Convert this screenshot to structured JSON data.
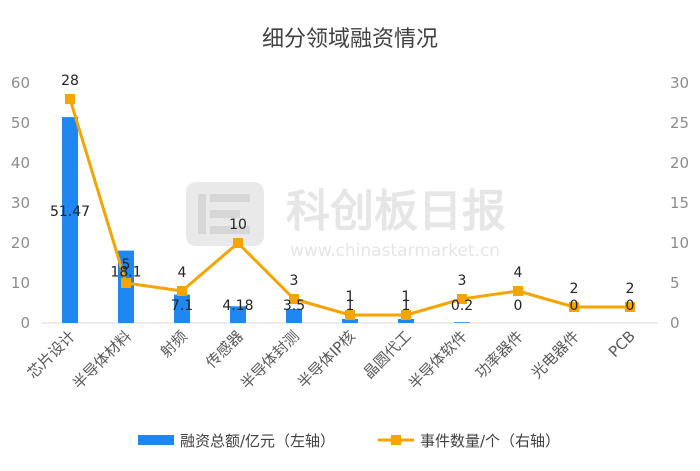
{
  "chart_data": {
    "type": "bar",
    "title": "细分领域融资情况",
    "categories": [
      "芯片设计",
      "半导体材料",
      "射频",
      "传感器",
      "半导体封测",
      "半导体IP核",
      "晶圆代工",
      "半导体软件",
      "功率器件",
      "光电器件",
      "PCB"
    ],
    "series": [
      {
        "name": "融资总额/亿元（左轴）",
        "type": "bar",
        "axis": "left",
        "color": "#1e88f0",
        "values": [
          51.47,
          18.1,
          7.1,
          4.18,
          3.5,
          1,
          1,
          0.2,
          0,
          0,
          0
        ],
        "labels": [
          "51.47",
          "18.1",
          "7.1",
          "4.18",
          "3.5",
          "1",
          "1",
          "0.2",
          "0",
          "0",
          "0"
        ]
      },
      {
        "name": "事件数量/个（右轴）",
        "type": "line",
        "axis": "right",
        "color": "#f5a400",
        "values": [
          28,
          5,
          4,
          10,
          3,
          1,
          1,
          3,
          4,
          2,
          2
        ],
        "labels": [
          "28",
          "5",
          "4",
          "10",
          "3",
          "1",
          "1",
          "3",
          "4",
          "2",
          "2"
        ]
      }
    ],
    "y_left": {
      "min": 0,
      "max": 60,
      "ticks": [
        "0",
        "10",
        "20",
        "30",
        "40",
        "50",
        "60"
      ]
    },
    "y_right": {
      "min": 0,
      "max": 30,
      "ticks": [
        "0",
        "5",
        "10",
        "15",
        "20",
        "25",
        "30"
      ]
    },
    "grid": false,
    "legend_position": "bottom"
  },
  "watermark": {
    "name": "科创板日报",
    "url": "www.chinastarmarket.cn"
  }
}
